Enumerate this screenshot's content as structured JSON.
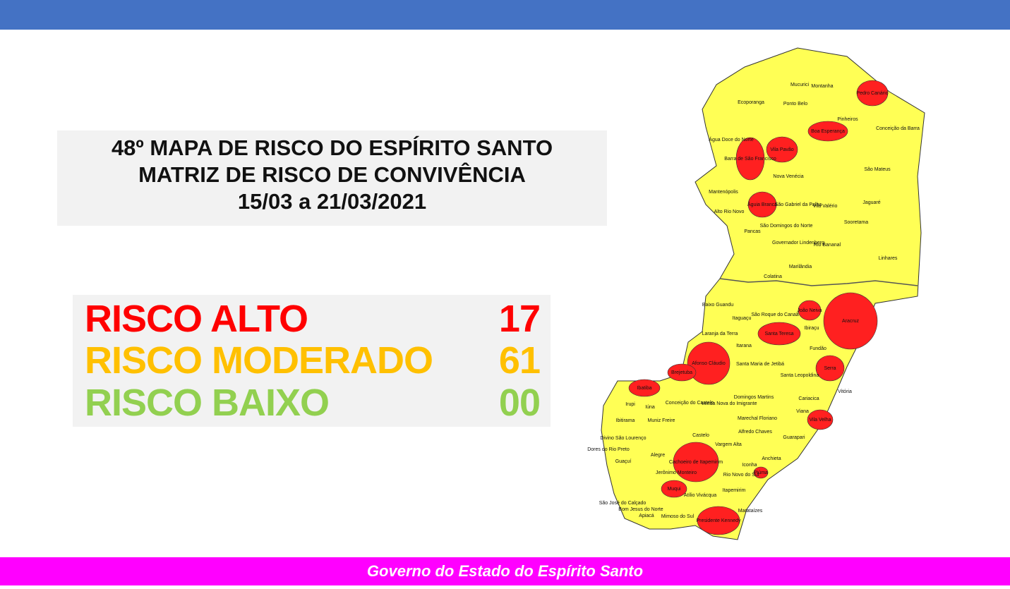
{
  "header": {
    "title_lines": [
      "48º MAPA DE RISCO DO ESPÍRITO SANTO",
      "MATRIZ DE RISCO DE CONVIVÊNCIA",
      "15/03 a 21/03/2021"
    ]
  },
  "legend": [
    {
      "label": "RISCO ALTO",
      "count": "17",
      "color": "#ff0000"
    },
    {
      "label": "RISCO MODERADO",
      "count": "61",
      "color": "#ffc000"
    },
    {
      "label": "RISCO BAIXO",
      "count": "00",
      "color": "#92d050"
    }
  ],
  "map": {
    "base_color": "#ffff55",
    "high_risk_color": "#ff2020",
    "high_risk": [
      "Pedro Canário",
      "Boa Esperança",
      "Barra de São Francisco",
      "Vila Pavão",
      "Águia Branca",
      "João Neiva",
      "Aracruz",
      "Santa Teresa",
      "Afonso Cláudio",
      "Serra",
      "Brejetuba",
      "Ibatiba",
      "Vila Velha",
      "Cachoeiro de Itapemirim",
      "Piúma",
      "Muqui",
      "Presidente Kennedy"
    ],
    "moderate_risk": [
      "Mucurici",
      "Montanha",
      "Ecoporanga",
      "Ponto Belo",
      "Pinheiros",
      "Conceição da Barra",
      "Água Doce do Norte",
      "Nova Venécia",
      "São Mateus",
      "Mantenópolis",
      "Alto Rio Novo",
      "São Gabriel da Palha",
      "Vila Valério",
      "Jaguaré",
      "Sooretama",
      "São Domingos do Norte",
      "Pancas",
      "Governador Lindenberg",
      "Rio Bananal",
      "Linhares",
      "Marilândia",
      "Colatina",
      "Baixo Guandu",
      "São Roque do Canaã",
      "Itaguaçu",
      "Ibiraçu",
      "Laranja da Terra",
      "Itarana",
      "Fundão",
      "Santa Maria de Jetibá",
      "Santa Leopoldina",
      "Vitória",
      "Domingos Martins",
      "Conceição do Castelo",
      "Venda Nova do Imigrante",
      "Cariacica",
      "Iúna",
      "Irupi",
      "Viana",
      "Marechal Floriano",
      "Ibitirama",
      "Muniz Freire",
      "Divino São Lourenço",
      "Dores do Rio Preto",
      "Guaçuí",
      "Castelo",
      "Alfredo Chaves",
      "Vargem Alta",
      "Guarapari",
      "Alegre",
      "Anchieta",
      "Jerônimo Monteiro",
      "Iconha",
      "Rio Novo do Sul",
      "Atílio Vivácqua",
      "Itapemirim",
      "São José do Calçado",
      "Bom Jesus do Norte",
      "Apiacá",
      "Mimoso do Sul",
      "Marataízes"
    ]
  },
  "footer": {
    "text": "Governo do Estado do Espírito Santo"
  }
}
